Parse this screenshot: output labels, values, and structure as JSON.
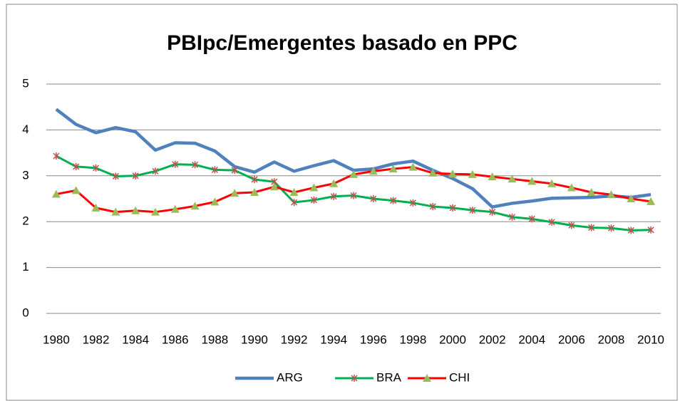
{
  "chart_data": {
    "type": "line",
    "title": "PBIpc/Emergentes basado en PPC",
    "categories": [
      "1980",
      null,
      "1982",
      null,
      "1984",
      null,
      "1986",
      null,
      "1988",
      null,
      "1990",
      null,
      "1992",
      null,
      "1994",
      null,
      "1996",
      null,
      "1998",
      null,
      "2000",
      null,
      "2002",
      null,
      "2004",
      null,
      "2006",
      null,
      "2008",
      null,
      "2010"
    ],
    "series": [
      {
        "name": "ARG",
        "color": "#4f81bd",
        "marker": "none",
        "values": [
          4.45,
          4.12,
          3.94,
          4.05,
          3.96,
          3.56,
          3.72,
          3.71,
          3.54,
          3.2,
          3.08,
          3.3,
          3.1,
          3.22,
          3.33,
          3.12,
          3.15,
          3.26,
          3.32,
          3.12,
          2.94,
          2.72,
          2.32,
          2.4,
          2.45,
          2.51,
          2.52,
          2.53,
          2.56,
          2.53,
          2.59
        ]
      },
      {
        "name": "BRA",
        "color": "#00b050",
        "marker": "star",
        "marker_color": "#c0504d",
        "values": [
          3.43,
          3.2,
          3.17,
          2.99,
          3.0,
          3.1,
          3.25,
          3.24,
          3.13,
          3.12,
          2.92,
          2.87,
          2.42,
          2.47,
          2.55,
          2.57,
          2.5,
          2.46,
          2.41,
          2.33,
          2.3,
          2.25,
          2.21,
          2.1,
          2.06,
          1.99,
          1.92,
          1.87,
          1.86,
          1.81,
          1.82
        ]
      },
      {
        "name": "CHI",
        "color": "#ff0000",
        "marker": "triangle",
        "marker_color": "#9bbb59",
        "values": [
          2.6,
          2.68,
          2.3,
          2.21,
          2.24,
          2.21,
          2.27,
          2.34,
          2.43,
          2.62,
          2.64,
          2.76,
          2.64,
          2.74,
          2.83,
          3.03,
          3.1,
          3.15,
          3.19,
          3.06,
          3.04,
          3.03,
          2.98,
          2.93,
          2.88,
          2.83,
          2.74,
          2.64,
          2.59,
          2.5,
          2.44
        ]
      }
    ],
    "ylim": [
      0,
      5
    ],
    "yticks": [
      0,
      1,
      2,
      3,
      4,
      5
    ],
    "grid": true,
    "legend": "bottom"
  }
}
